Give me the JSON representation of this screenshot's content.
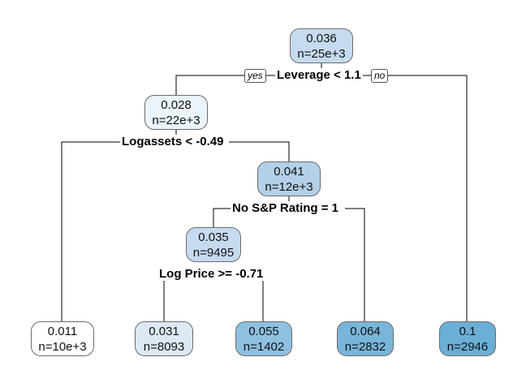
{
  "tree": {
    "nodes": {
      "root": {
        "value": "0.036",
        "n": "n=25e+3",
        "color": "#c6dbef"
      },
      "n2": {
        "value": "0.028",
        "n": "n=22e+3",
        "color": "#ebf3fb"
      },
      "n3": {
        "value": "0.1",
        "n": "n=2946",
        "color": "#6baed6"
      },
      "n4": {
        "value": "0.011",
        "n": "n=10e+3",
        "color": "#ffffff"
      },
      "n5": {
        "value": "0.041",
        "n": "n=12e+3",
        "color": "#b3d0e8"
      },
      "n10": {
        "value": "0.035",
        "n": "n=9495",
        "color": "#c6dbef"
      },
      "n11": {
        "value": "0.064",
        "n": "n=2832",
        "color": "#79b5da"
      },
      "n20": {
        "value": "0.031",
        "n": "n=8093",
        "color": "#dce9f5"
      },
      "n21": {
        "value": "0.055",
        "n": "n=1402",
        "color": "#8ec0e0"
      }
    },
    "splits": {
      "root": "Leverage < 1.1",
      "n2": "Logassets < -0.49",
      "n5": "No S&P Rating = 1",
      "n10": "Log Price >= -0.71"
    },
    "branch_labels": {
      "yes": "yes",
      "no": "no"
    }
  }
}
